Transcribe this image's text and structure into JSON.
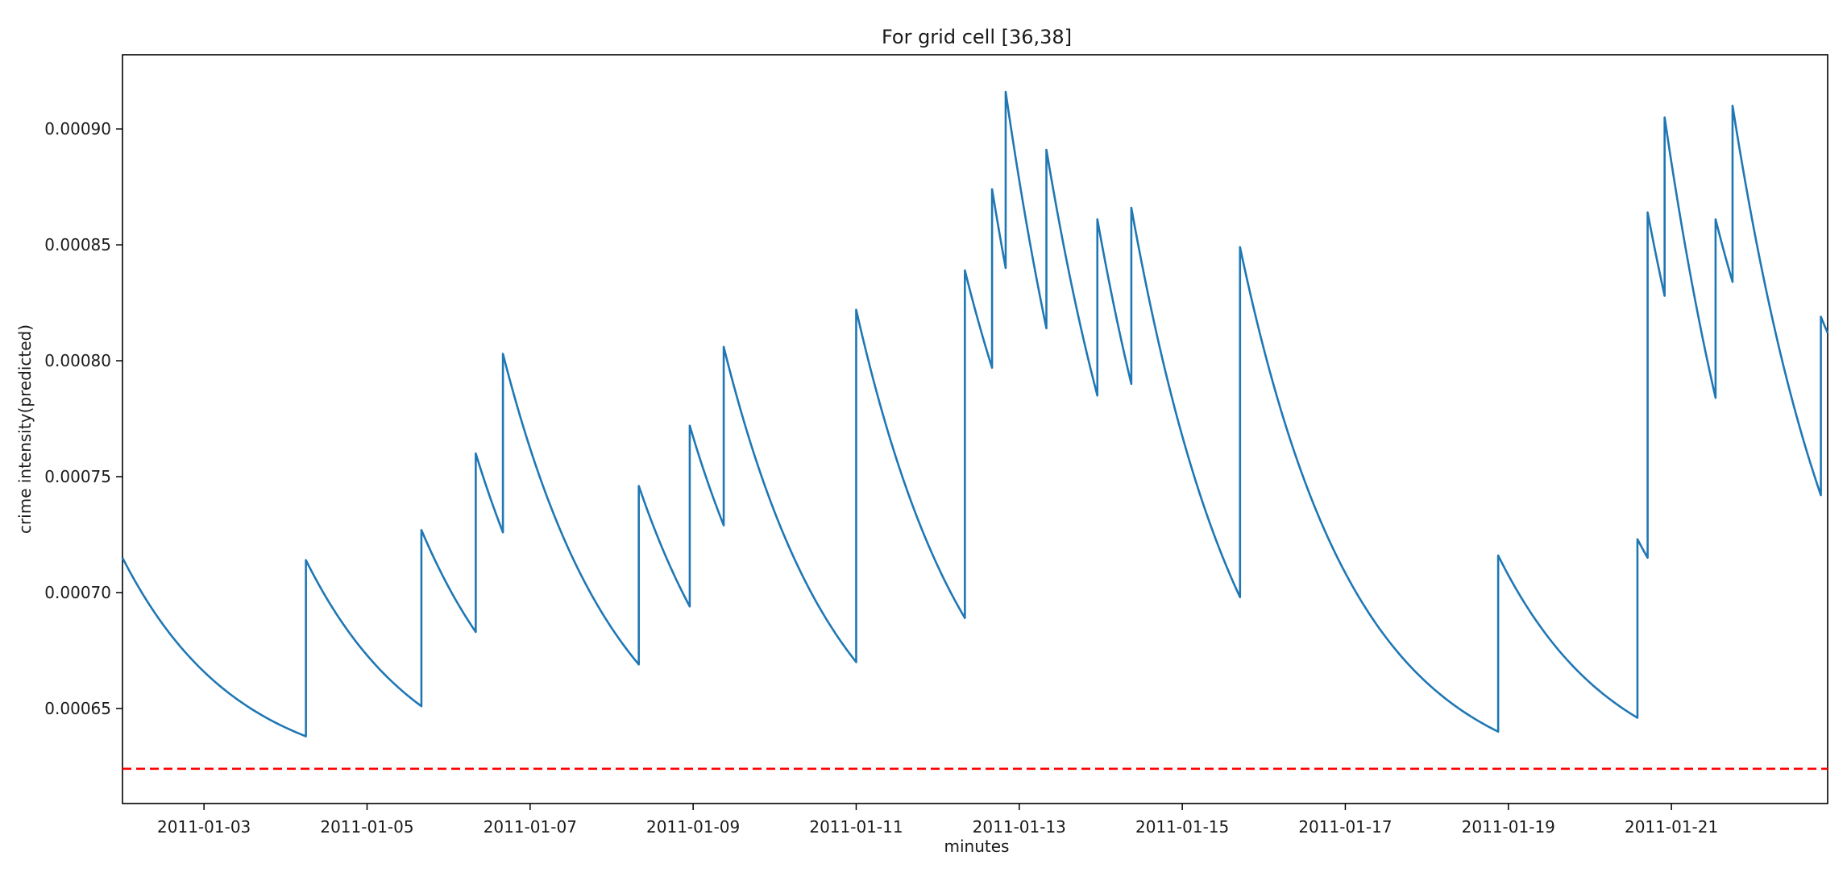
{
  "chart_data": {
    "type": "line",
    "title": "For grid cell [36,38]",
    "xlabel": "minutes",
    "ylabel": "crime intensity(predicted)",
    "x_ticks": [
      "2011-01-03",
      "2011-01-05",
      "2011-01-07",
      "2011-01-09",
      "2011-01-11",
      "2011-01-13",
      "2011-01-15",
      "2011-01-17",
      "2011-01-19",
      "2011-01-21"
    ],
    "y_ticks": [
      "0.00065",
      "0.00070",
      "0.00075",
      "0.00080",
      "0.00085",
      "0.00090"
    ],
    "xlim": [
      "2011-01-02T00:00",
      "2011-01-22T22:00"
    ],
    "ylim": [
      0.000609,
      0.000932
    ],
    "grid": false,
    "series": [
      {
        "color": "#1f77b4",
        "decay_tau_days": 1.4,
        "events": [
          {
            "x": "2011-01-02T00:00",
            "from": 0.000715,
            "to": 0.000715
          },
          {
            "x": "2011-01-04T06:00",
            "from": 0.000638,
            "to": 0.000714
          },
          {
            "x": "2011-01-05T16:00",
            "from": 0.000651,
            "to": 0.000727
          },
          {
            "x": "2011-01-06T08:00",
            "from": 0.000683,
            "to": 0.00076
          },
          {
            "x": "2011-01-06T16:00",
            "from": 0.000726,
            "to": 0.000803
          },
          {
            "x": "2011-01-08T08:00",
            "from": 0.000669,
            "to": 0.000746
          },
          {
            "x": "2011-01-08T23:00",
            "from": 0.000694,
            "to": 0.000772
          },
          {
            "x": "2011-01-09T09:00",
            "from": 0.000729,
            "to": 0.000806
          },
          {
            "x": "2011-01-11T00:00",
            "from": 0.00067,
            "to": 0.000822
          },
          {
            "x": "2011-01-12T08:00",
            "from": 0.000689,
            "to": 0.000839
          },
          {
            "x": "2011-01-12T16:00",
            "from": 0.000797,
            "to": 0.000874
          },
          {
            "x": "2011-01-12T20:00",
            "from": 0.00084,
            "to": 0.000916
          },
          {
            "x": "2011-01-13T08:00",
            "from": 0.000814,
            "to": 0.000891
          },
          {
            "x": "2011-01-13T23:00",
            "from": 0.000785,
            "to": 0.000861
          },
          {
            "x": "2011-01-14T09:00",
            "from": 0.00079,
            "to": 0.000866
          },
          {
            "x": "2011-01-15T17:00",
            "from": 0.000698,
            "to": 0.000849
          },
          {
            "x": "2011-01-18T21:00",
            "from": 0.00064,
            "to": 0.000716
          },
          {
            "x": "2011-01-20T14:00",
            "from": 0.000646,
            "to": 0.000723
          },
          {
            "x": "2011-01-20T17:00",
            "from": 0.000715,
            "to": 0.000864
          },
          {
            "x": "2011-01-20T22:00",
            "from": 0.000828,
            "to": 0.000905
          },
          {
            "x": "2011-01-21T13:00",
            "from": 0.000784,
            "to": 0.000861
          },
          {
            "x": "2011-01-21T18:00",
            "from": 0.000834,
            "to": 0.00091
          },
          {
            "x": "2011-01-22T20:00",
            "from": 0.000742,
            "to": 0.000819
          },
          {
            "x": "2011-01-22T22:00",
            "from": 0.000812,
            "to": 0.000812
          }
        ]
      },
      {
        "color": "#ff0000",
        "style": "dashed",
        "x": [
          "2011-01-02T00:00",
          "2011-01-22T22:00"
        ],
        "values": [
          0.000624,
          0.000624
        ]
      }
    ]
  }
}
